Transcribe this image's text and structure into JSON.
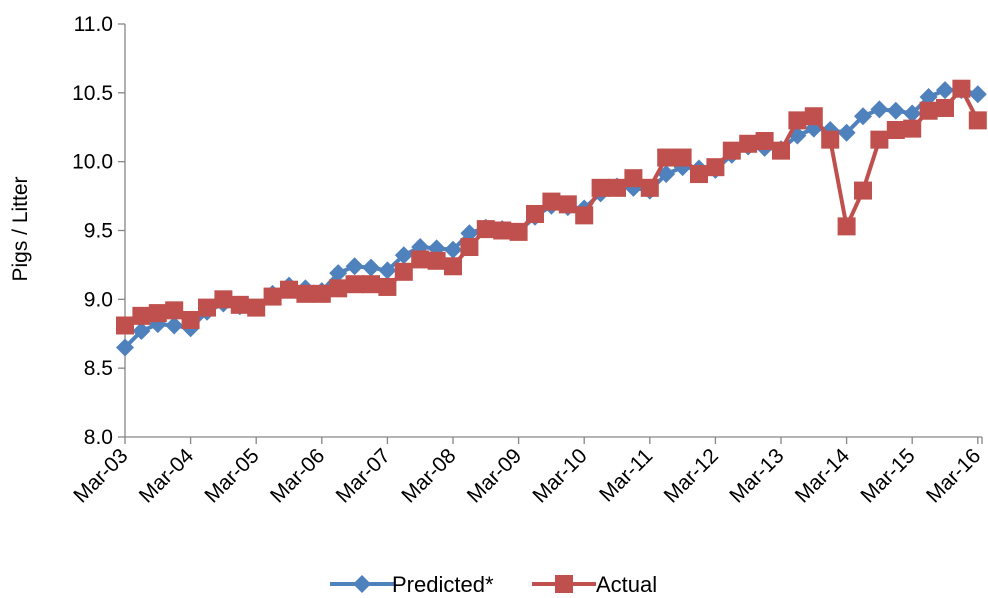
{
  "chart_data": {
    "type": "line",
    "title": "",
    "xlabel": "",
    "ylabel": "Pigs / Litter",
    "ylim": [
      8.0,
      11.0
    ],
    "yticks": [
      "8.0",
      "8.5",
      "9.0",
      "9.5",
      "10.0",
      "10.5",
      "11.0"
    ],
    "xticks": [
      "Mar-03",
      "Mar-04",
      "Mar-05",
      "Mar-06",
      "Mar-07",
      "Mar-08",
      "Mar-09",
      "Mar-10",
      "Mar-11",
      "Mar-12",
      "Mar-13",
      "Mar-14",
      "Mar-15",
      "Mar-16"
    ],
    "grid": false,
    "legend_position": "bottom",
    "x": [
      "Mar-03",
      "Jun-03",
      "Sep-03",
      "Dec-03",
      "Mar-04",
      "Jun-04",
      "Sep-04",
      "Dec-04",
      "Mar-05",
      "Jun-05",
      "Sep-05",
      "Dec-05",
      "Mar-06",
      "Jun-06",
      "Sep-06",
      "Dec-06",
      "Mar-07",
      "Jun-07",
      "Sep-07",
      "Dec-07",
      "Mar-08",
      "Jun-08",
      "Sep-08",
      "Dec-08",
      "Mar-09",
      "Jun-09",
      "Sep-09",
      "Dec-09",
      "Mar-10",
      "Jun-10",
      "Sep-10",
      "Dec-10",
      "Mar-11",
      "Jun-11",
      "Sep-11",
      "Dec-11",
      "Mar-12",
      "Jun-12",
      "Sep-12",
      "Dec-12",
      "Mar-13",
      "Jun-13",
      "Sep-13",
      "Dec-13",
      "Mar-14",
      "Jun-14",
      "Sep-14",
      "Dec-14",
      "Mar-15",
      "Jun-15",
      "Sep-15",
      "Dec-15",
      "Mar-16"
    ],
    "series": [
      {
        "name": "Predicted*",
        "color": "#4F81BD",
        "marker": "diamond",
        "values": [
          8.65,
          8.77,
          8.82,
          8.81,
          8.79,
          8.91,
          8.97,
          8.95,
          8.94,
          9.04,
          9.1,
          9.08,
          9.06,
          9.19,
          9.24,
          9.23,
          9.21,
          9.32,
          9.38,
          9.37,
          9.36,
          9.48,
          9.52,
          9.51,
          9.49,
          9.6,
          9.68,
          9.67,
          9.66,
          9.77,
          9.82,
          9.81,
          9.79,
          9.91,
          9.96,
          9.95,
          9.94,
          10.05,
          10.11,
          10.1,
          10.09,
          10.19,
          10.24,
          10.23,
          10.21,
          10.33,
          10.38,
          10.37,
          10.35,
          10.47,
          10.52,
          10.52,
          10.49
        ]
      },
      {
        "name": "Actual",
        "color": "#C0504D",
        "marker": "square",
        "values": [
          8.81,
          8.88,
          8.9,
          8.92,
          8.85,
          8.94,
          9.0,
          8.96,
          8.94,
          9.02,
          9.07,
          9.04,
          9.04,
          9.08,
          9.11,
          9.11,
          9.09,
          9.2,
          9.29,
          9.28,
          9.24,
          9.38,
          9.51,
          9.5,
          9.49,
          9.62,
          9.71,
          9.69,
          9.61,
          9.81,
          9.81,
          9.88,
          9.81,
          10.03,
          10.03,
          9.91,
          9.96,
          10.08,
          10.13,
          10.15,
          10.08,
          10.3,
          10.33,
          10.16,
          9.53,
          9.79,
          10.16,
          10.23,
          10.24,
          10.37,
          10.39,
          10.53,
          10.3
        ]
      }
    ]
  }
}
